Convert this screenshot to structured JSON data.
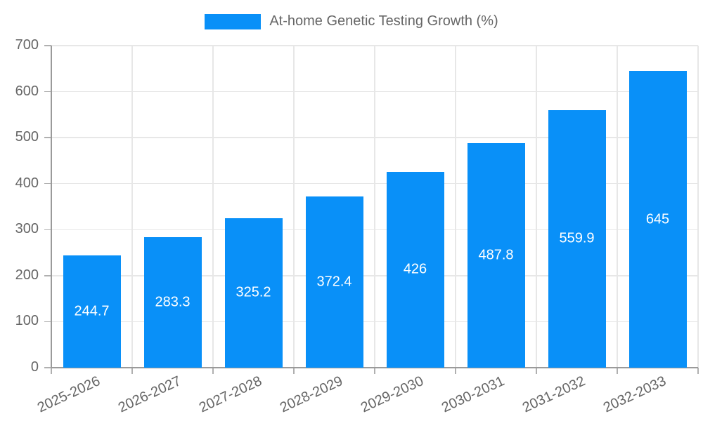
{
  "chart_data": {
    "type": "bar",
    "title": "At-home Genetic Testing Growth (%)",
    "categories": [
      "2025-2026",
      "2026-2027",
      "2027-2028",
      "2028-2029",
      "2029-2030",
      "2030-2031",
      "2031-2032",
      "2032-2033"
    ],
    "values": [
      244.7,
      283.3,
      325.2,
      372.4,
      426,
      487.8,
      559.9,
      645
    ],
    "value_labels": [
      "244.7",
      "283.3",
      "325.2",
      "372.4",
      "426",
      "487.8",
      "559.9",
      "645"
    ],
    "ytick_labels": [
      "0",
      "100",
      "200",
      "300",
      "400",
      "500",
      "600",
      "700"
    ],
    "yticks": [
      0,
      100,
      200,
      300,
      400,
      500,
      600,
      700
    ],
    "ylim": [
      0,
      700
    ],
    "xlabel": "",
    "ylabel": "",
    "legend_position": "top",
    "grid": true,
    "x_label_rotation_deg": -25,
    "colors": {
      "bar": "#0990f8",
      "value_label": "#ffffff",
      "axis_text": "#666666",
      "axis_line": "#9a9a9a",
      "gridline": "#e7e7e7",
      "tick": "#b0b0b0",
      "background": "#ffffff"
    }
  }
}
